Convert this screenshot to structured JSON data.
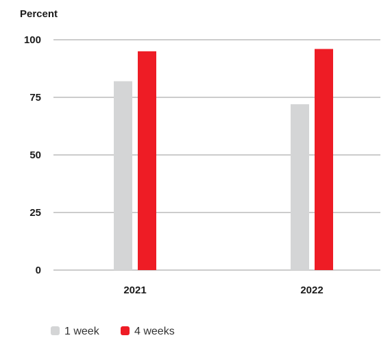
{
  "chart_data": {
    "type": "bar",
    "title": "",
    "ylabel": "Percent",
    "xlabel": "",
    "categories": [
      "2021",
      "2022"
    ],
    "series": [
      {
        "name": "1 week",
        "values": [
          82,
          72
        ],
        "color": "#d4d5d6"
      },
      {
        "name": "4 weeks",
        "values": [
          95,
          96
        ],
        "color": "#ee1c25"
      }
    ],
    "ylim": [
      0,
      100
    ],
    "yticks": [
      0,
      25,
      50,
      75,
      100
    ],
    "grid": true,
    "legend_position": "bottom-left"
  }
}
